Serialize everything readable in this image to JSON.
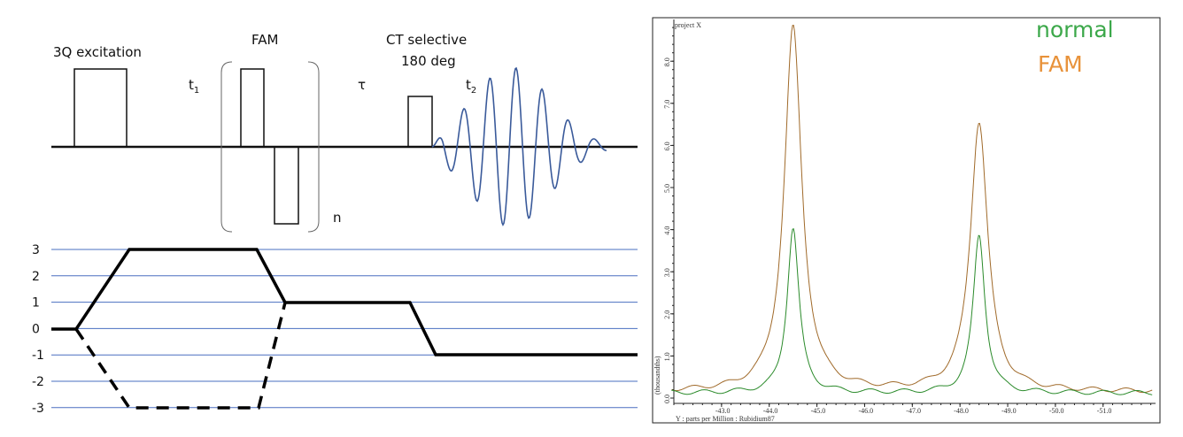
{
  "pulse_sequence": {
    "labels": {
      "excitation": "3Q excitation",
      "t1": "t",
      "t1_sub": "1",
      "fam": "FAM",
      "tau": "τ",
      "ct_line1": "CT selective",
      "ct_line2": "180 deg",
      "t2": "t",
      "t2_sub": "2",
      "n": "n"
    },
    "fid_color": "#3a5a9a"
  },
  "coherence": {
    "levels": [
      "3",
      "2",
      "1",
      "0",
      "-1",
      "-2",
      "-3"
    ],
    "grid_color": "#4a6fc0"
  },
  "chart_data": {
    "type": "line",
    "title": "project X",
    "xlabel": "Y : parts per Million : Rubidium87",
    "ylabel": "(thousandths)",
    "xlim": [
      -42.0,
      -52.1
    ],
    "ylim": [
      0,
      9.0
    ],
    "x_ticks": [
      "-43.0",
      "-44.0",
      "-45.0",
      "-46.0",
      "-47.0",
      "-48.0",
      "-49.0",
      "-50.0",
      "-51.0"
    ],
    "y_ticks": [
      "0.0",
      "1.0",
      "2.0",
      "3.0",
      "4.0",
      "5.0",
      "6.0",
      "7.0",
      "8.0"
    ],
    "legend": {
      "placement": "top-right",
      "entries": [
        {
          "label": "normal",
          "color": "#3ca84a"
        },
        {
          "label": "FAM",
          "color": "#e8923a"
        }
      ]
    },
    "series": [
      {
        "name": "FAM",
        "color": "#a06a2a",
        "baseline": 0.15,
        "peaks": [
          {
            "ppm": -44.5,
            "height": 8.8
          },
          {
            "ppm": -48.4,
            "height": 6.55
          }
        ]
      },
      {
        "name": "normal",
        "color": "#2a8a2a",
        "baseline": 0.12,
        "peaks": [
          {
            "ppm": -44.5,
            "height": 4.05
          },
          {
            "ppm": -48.4,
            "height": 3.87
          }
        ]
      }
    ]
  }
}
